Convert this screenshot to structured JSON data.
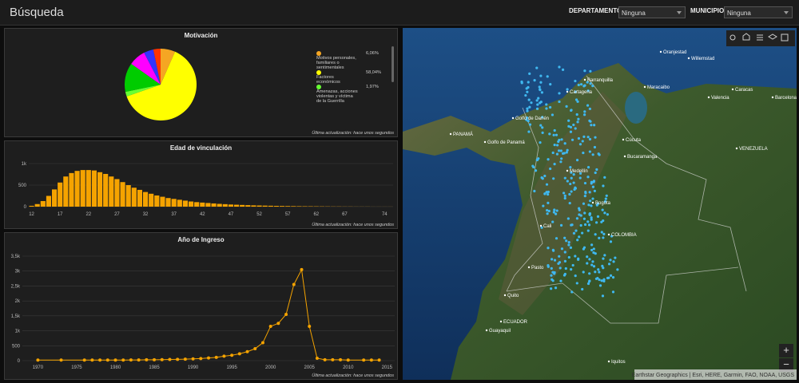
{
  "header": {
    "title": "Búsqueda",
    "filters": [
      {
        "label": "DEPARTAMENTO",
        "value": "Ninguna"
      },
      {
        "label": "MUNICIPIO",
        "value": "Ninguna"
      }
    ]
  },
  "chart_data": [
    {
      "type": "pie",
      "title": "Motivación",
      "note": "Última actualización: hace unos segundos",
      "categories": [
        "Motivos personales, familiares o sentimentales",
        "Factores económicos",
        "Amenazas, acciones violentas y víctima de la Guerrilla",
        null,
        null,
        null,
        null
      ],
      "values": [
        6.06,
        58.04,
        1.97,
        12,
        7,
        4,
        3
      ],
      "value_labels": [
        "6,06%",
        "58,04%",
        "1,97%",
        null,
        null,
        null,
        null
      ],
      "colors": [
        "#f5a623",
        "#ffff00",
        "#66ff33",
        "#00cc00",
        "#ff00ff",
        "#3333ff",
        "#ff3300"
      ]
    },
    {
      "type": "bar",
      "title": "Edad de vinculación",
      "note": "Última actualización: hace unos segundos",
      "color": "#f5a300",
      "grid": true,
      "categories": [
        12,
        null,
        null,
        null,
        null,
        17,
        null,
        null,
        null,
        null,
        22,
        null,
        null,
        null,
        null,
        27,
        null,
        null,
        null,
        null,
        32,
        null,
        null,
        null,
        null,
        37,
        null,
        null,
        null,
        null,
        42,
        null,
        null,
        null,
        null,
        47,
        null,
        null,
        null,
        null,
        52,
        null,
        null,
        null,
        null,
        57,
        null,
        null,
        null,
        null,
        62,
        null,
        null,
        null,
        null,
        67,
        null,
        null,
        null,
        null,
        null,
        null,
        74,
        null
      ],
      "values": [
        20,
        60,
        130,
        250,
        400,
        560,
        700,
        780,
        830,
        850,
        850,
        840,
        800,
        760,
        700,
        640,
        570,
        500,
        440,
        390,
        340,
        300,
        260,
        230,
        200,
        180,
        160,
        140,
        120,
        105,
        95,
        85,
        75,
        65,
        58,
        50,
        45,
        40,
        35,
        30,
        27,
        24,
        21,
        18,
        16,
        14,
        12,
        10,
        9,
        8,
        7,
        6,
        5,
        4,
        4,
        3,
        3,
        2,
        2,
        2,
        1,
        1,
        1,
        1
      ],
      "ylim": [
        0,
        1000
      ],
      "yticks": [
        0,
        500,
        {
          "value": 1000,
          "label": "1k"
        }
      ]
    },
    {
      "type": "line",
      "title": "Año de Ingreso",
      "note": "Última actualización: hace unos segundos",
      "color": "#f5a300",
      "grid": true,
      "x": [
        1970,
        1973,
        1976,
        1977,
        1978,
        1979,
        1980,
        1981,
        1982,
        1983,
        1984,
        1985,
        1986,
        1987,
        1988,
        1989,
        1990,
        1991,
        1992,
        1993,
        1994,
        1995,
        1996,
        1997,
        1998,
        1999,
        2000,
        2001,
        2002,
        2003,
        2004,
        2005,
        2006,
        2007,
        2008,
        2009,
        2010,
        2012,
        2013,
        2014
      ],
      "values": [
        20,
        20,
        20,
        20,
        20,
        20,
        20,
        20,
        25,
        25,
        30,
        30,
        35,
        40,
        45,
        50,
        60,
        70,
        90,
        110,
        150,
        180,
        230,
        300,
        400,
        600,
        1150,
        1250,
        1550,
        2550,
        3050,
        1150,
        80,
        30,
        30,
        30,
        20,
        20,
        20,
        20
      ],
      "xlim": [
        1968,
        2016
      ],
      "xticks": [
        1970,
        1975,
        1980,
        1985,
        1990,
        1995,
        2000,
        2005,
        2010,
        2015
      ],
      "ylim": [
        0,
        3500
      ],
      "yticks": [
        0,
        500,
        {
          "value": 1000,
          "label": "1k"
        },
        {
          "value": 1500,
          "label": "1,5k"
        },
        {
          "value": 2000,
          "label": "2k"
        },
        {
          "value": 2500,
          "label": "2,5k"
        },
        {
          "value": 3000,
          "label": "3k"
        },
        {
          "value": 3500,
          "label": "3,5k"
        }
      ]
    }
  ],
  "map": {
    "labels": [
      "Oranjestad",
      "Willemstad",
      "Barranquilla",
      "Maracaibo",
      "Cartagena",
      "Caracas",
      "Valencia",
      "Barcelona",
      "Golfo de Darién",
      "PANAMÁ",
      "Golfo de Panamá",
      "Cúcuta",
      "Bucaramanga",
      "Medellín",
      "VENEZUELA",
      "Bogota",
      "Cali",
      "COLOMBIA",
      "Pasto",
      "Quito",
      "ECUADOR",
      "Guayaquil",
      "Iquitos"
    ],
    "attribution": "Earthstar Geographics | Esri, HERE, Garmin, FAO, NOAA, USGS",
    "zoom_in": "+",
    "zoom_out": "−"
  }
}
